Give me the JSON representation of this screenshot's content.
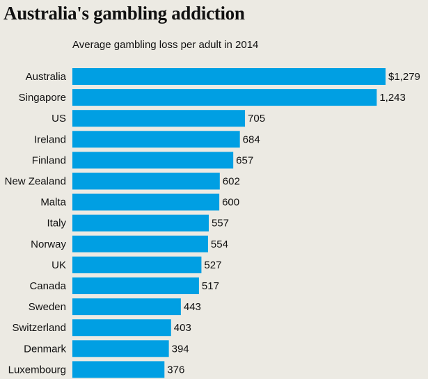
{
  "chart_data": {
    "type": "bar",
    "orientation": "horizontal",
    "title": "Australia's gambling addiction",
    "subtitle": "Average gambling loss per adult in 2014",
    "categories": [
      "Australia",
      "Singapore",
      "US",
      "Ireland",
      "Finland",
      "New Zealand",
      "Malta",
      "Italy",
      "Norway",
      "UK",
      "Canada",
      "Sweden",
      "Switzerland",
      "Denmark",
      "Luxembourg"
    ],
    "values": [
      1279,
      1243,
      705,
      684,
      657,
      602,
      600,
      557,
      554,
      527,
      517,
      443,
      403,
      394,
      376
    ],
    "value_labels": [
      "$1,279",
      "1,243",
      "705",
      "684",
      "657",
      "602",
      "600",
      "557",
      "554",
      "527",
      "517",
      "443",
      "403",
      "394",
      "376"
    ],
    "bar_color": "#009fe3",
    "background_color": "#eceae3",
    "xlim": [
      0,
      1279
    ],
    "grid": false,
    "legend": "none"
  }
}
